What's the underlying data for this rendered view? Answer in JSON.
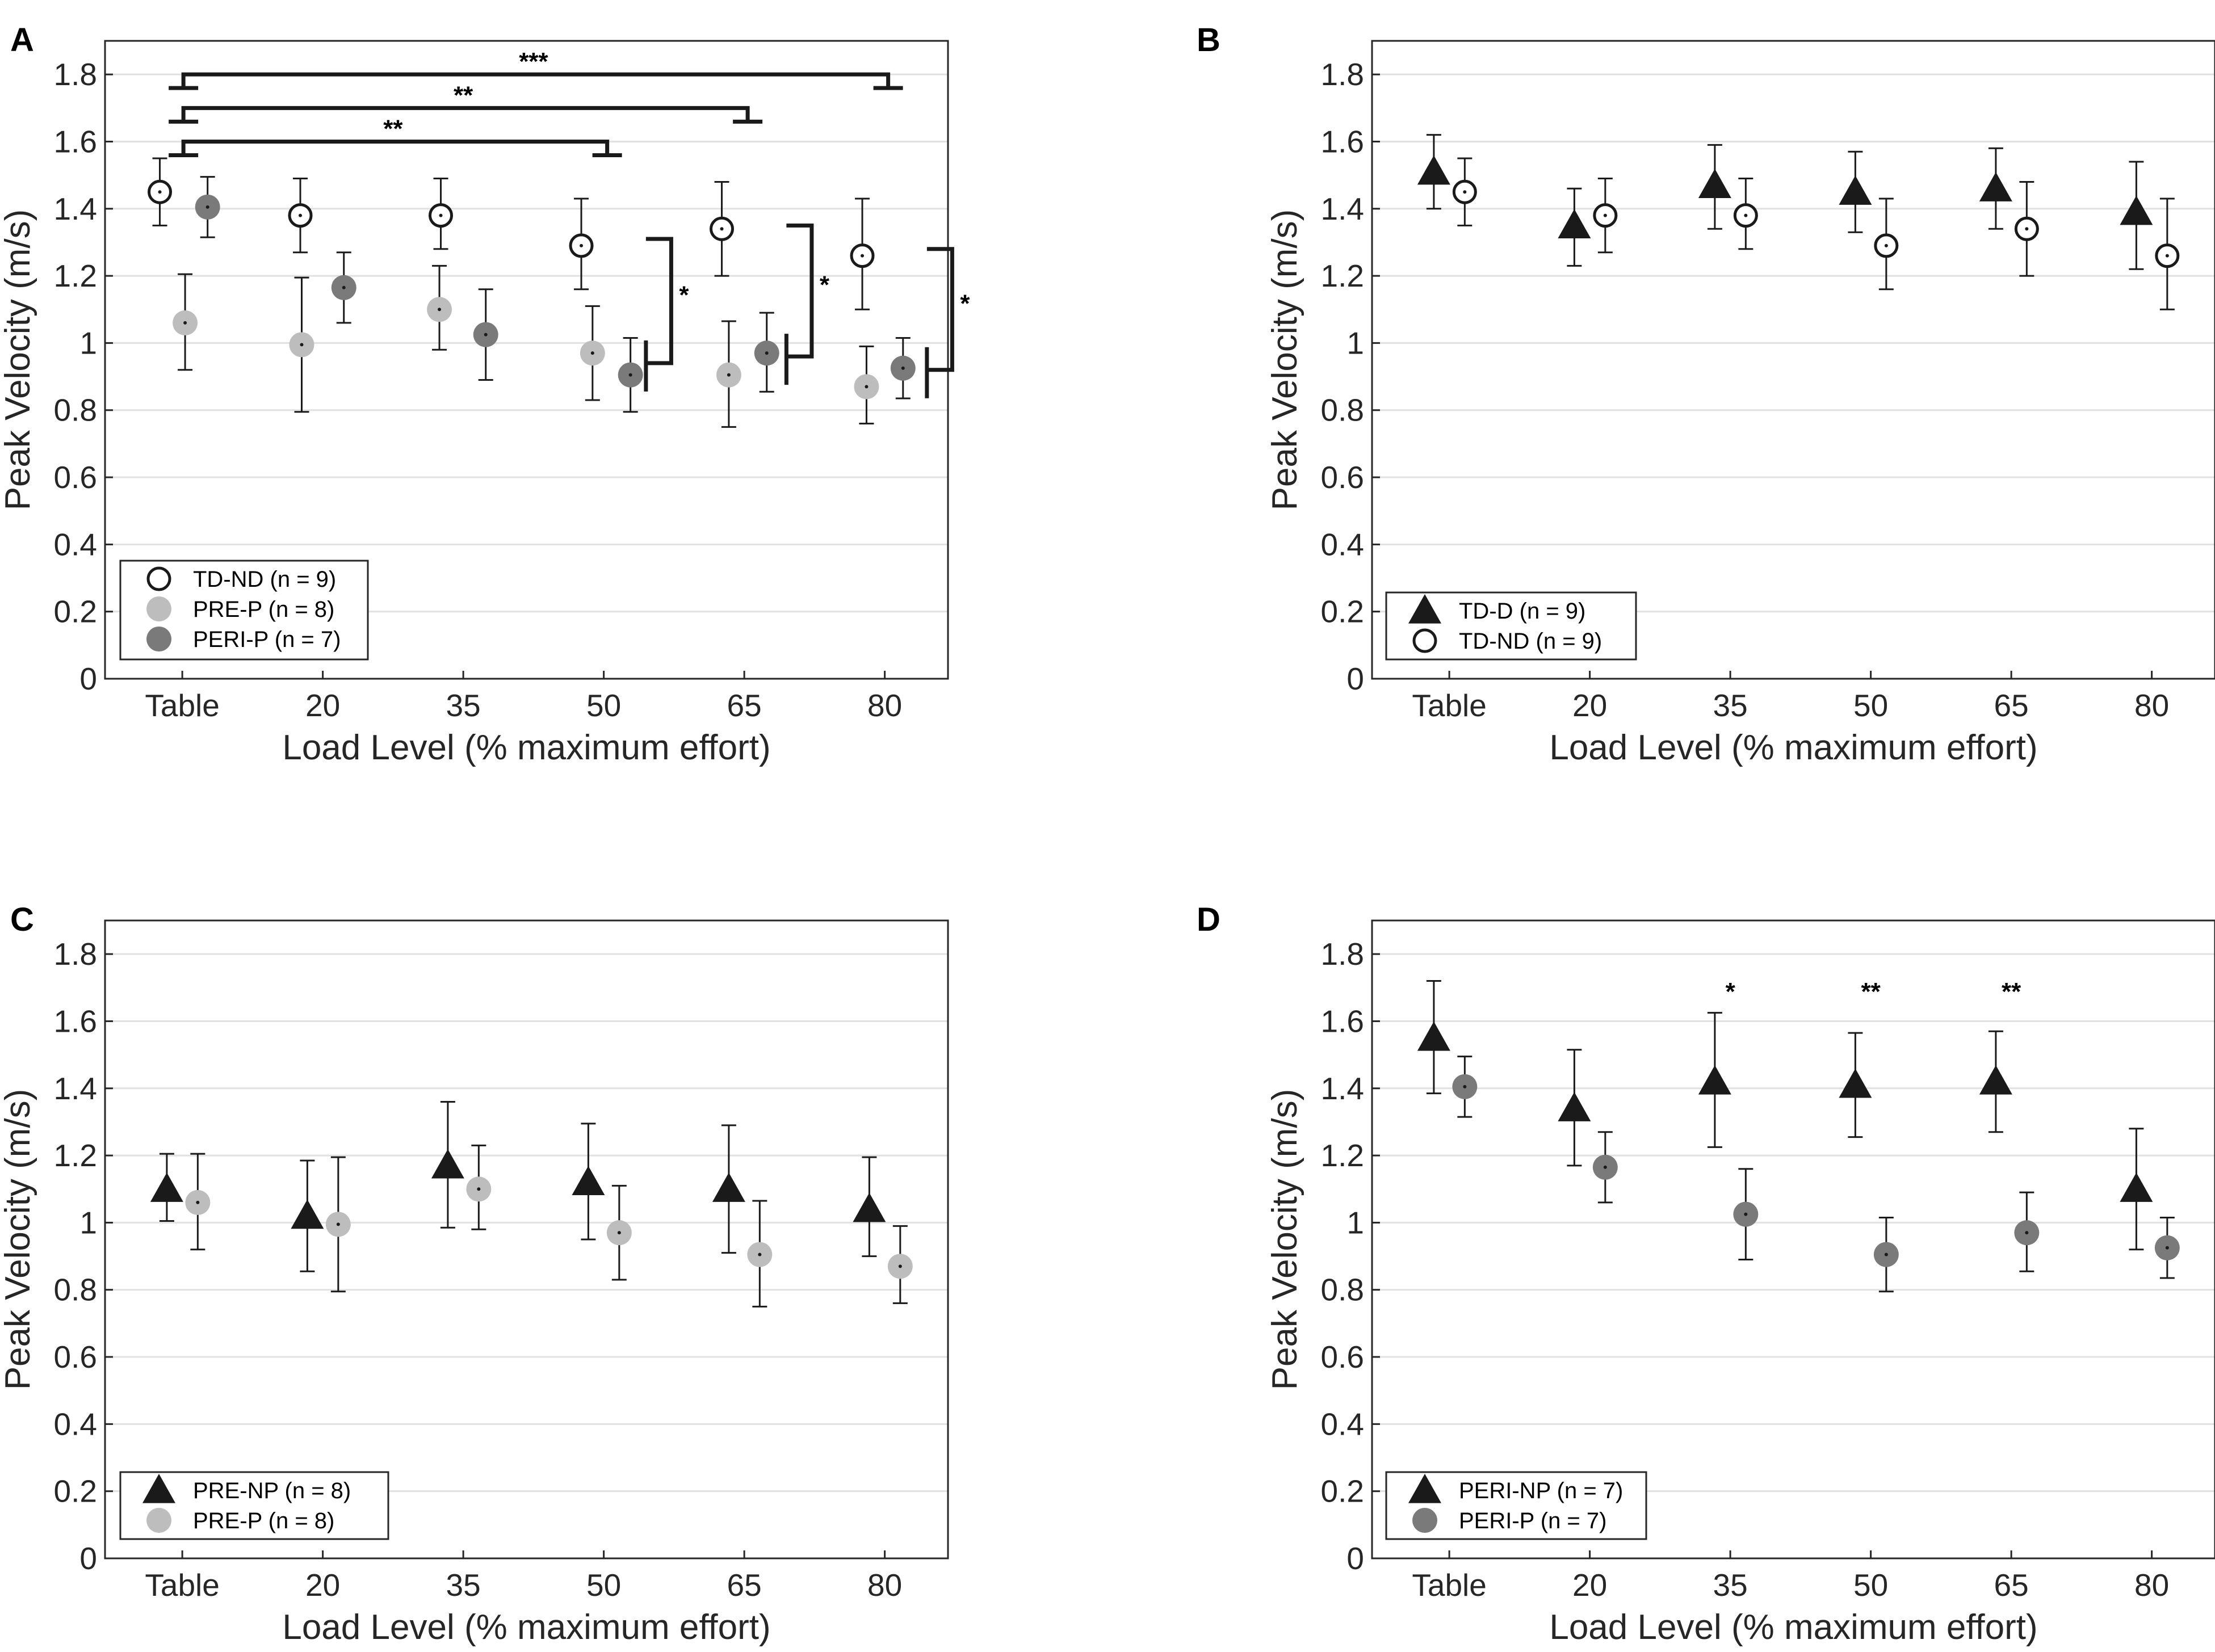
{
  "colors": {
    "black": "#1a1a1a",
    "open_marker_fill": "#ffffff",
    "light_gray": "#bdbdbd",
    "dark_gray": "#7a7a7a",
    "grid": "#e1e1e1",
    "axis": "#262626"
  },
  "chart_data": [
    {
      "panel": "A",
      "type": "scatter",
      "categories": [
        "Table",
        "20",
        "35",
        "50",
        "65",
        "80"
      ],
      "xlabel": "Load Level (% maximum effort)",
      "ylabel": "Peak Velocity (m/s)",
      "ylim": [
        0,
        1.9
      ],
      "yticks": [
        "0",
        "0.2",
        "0.4",
        "0.6",
        "0.8",
        "1",
        "1.2",
        "1.4",
        "1.6",
        "1.8"
      ],
      "grid": true,
      "legend_position": "bottom-left",
      "series": [
        {
          "name": "TD-ND (n = 9)",
          "marker": "open-circle",
          "offset": -0.16,
          "values": [
            1.45,
            1.38,
            1.38,
            1.29,
            1.34,
            1.26
          ],
          "lower": [
            1.35,
            1.27,
            1.28,
            1.16,
            1.2,
            1.1
          ],
          "upper": [
            1.55,
            1.49,
            1.49,
            1.43,
            1.48,
            1.43
          ]
        },
        {
          "name": "PRE-P (n = 8)",
          "marker": "light-circle",
          "offset": 0.0,
          "values": [
            1.06,
            0.995,
            1.1,
            0.97,
            0.905,
            0.87
          ],
          "lower": [
            0.92,
            0.795,
            0.98,
            0.83,
            0.75,
            0.76
          ],
          "upper": [
            1.205,
            1.195,
            1.23,
            1.11,
            1.065,
            0.99
          ]
        },
        {
          "name": "PERI-P (n = 7)",
          "marker": "dark-circle",
          "offset": 0.16,
          "values": [
            1.405,
            1.165,
            1.025,
            0.905,
            0.97,
            0.925
          ],
          "lower": [
            1.315,
            1.06,
            0.89,
            0.795,
            0.855,
            0.835
          ],
          "upper": [
            1.495,
            1.27,
            1.16,
            1.015,
            1.09,
            1.015
          ]
        }
      ],
      "custom_positions": {
        "PRE-P (n = 8)": [
          0.02,
          0.85,
          1.83,
          2.92,
          3.89,
          4.87
        ],
        "PERI-P (n = 7)": [
          0.18,
          1.15,
          2.16,
          3.19,
          4.16,
          5.13
        ]
      },
      "annotations": [
        {
          "type": "bracket-h",
          "from": 0,
          "to": 3,
          "y": 1.6,
          "label": "**"
        },
        {
          "type": "bracket-h",
          "from": 0,
          "to": 4,
          "y": 1.7,
          "label": "**"
        },
        {
          "type": "bracket-h",
          "from": 0,
          "to": 5,
          "y": 1.8,
          "label": "***"
        },
        {
          "type": "bracket-v",
          "x": 3,
          "y_low": 0.94,
          "y_high": 1.31,
          "label": "*"
        },
        {
          "type": "bracket-v",
          "x": 4,
          "y_low": 0.96,
          "y_high": 1.35,
          "label": "*"
        },
        {
          "type": "bracket-v",
          "x": 5,
          "y_low": 0.92,
          "y_high": 1.28,
          "label": "*"
        }
      ]
    },
    {
      "panel": "B",
      "type": "scatter",
      "categories": [
        "Table",
        "20",
        "35",
        "50",
        "65",
        "80"
      ],
      "xlabel": "Load Level (% maximum effort)",
      "ylabel": "Peak Velocity (m/s)",
      "ylim": [
        0,
        1.9
      ],
      "yticks": [
        "0",
        "0.2",
        "0.4",
        "0.6",
        "0.8",
        "1",
        "1.2",
        "1.4",
        "1.6",
        "1.8"
      ],
      "grid": true,
      "legend_position": "bottom-left",
      "series": [
        {
          "name": "TD-D (n = 9)",
          "marker": "triangle",
          "offset": -0.11,
          "values": [
            1.51,
            1.35,
            1.47,
            1.45,
            1.46,
            1.39
          ],
          "lower": [
            1.4,
            1.23,
            1.34,
            1.33,
            1.34,
            1.22
          ],
          "upper": [
            1.62,
            1.46,
            1.59,
            1.57,
            1.58,
            1.54
          ]
        },
        {
          "name": "TD-ND (n = 9)",
          "marker": "open-circle",
          "offset": 0.11,
          "values": [
            1.45,
            1.38,
            1.38,
            1.29,
            1.34,
            1.26
          ],
          "lower": [
            1.35,
            1.27,
            1.28,
            1.16,
            1.2,
            1.1
          ],
          "upper": [
            1.55,
            1.49,
            1.49,
            1.43,
            1.48,
            1.43
          ]
        }
      ],
      "annotations": []
    },
    {
      "panel": "C",
      "type": "scatter",
      "categories": [
        "Table",
        "20",
        "35",
        "50",
        "65",
        "80"
      ],
      "xlabel": "Load Level (% maximum effort)",
      "ylabel": "Peak Velocity (m/s)",
      "ylim": [
        0,
        1.9
      ],
      "yticks": [
        "0",
        "0.2",
        "0.4",
        "0.6",
        "0.8",
        "1",
        "1.2",
        "1.4",
        "1.6",
        "1.8"
      ],
      "grid": true,
      "legend_position": "bottom-left",
      "series": [
        {
          "name": "PRE-NP (n = 8)",
          "marker": "triangle",
          "offset": -0.11,
          "values": [
            1.1,
            1.02,
            1.17,
            1.12,
            1.1,
            1.04
          ],
          "lower": [
            1.005,
            0.855,
            0.985,
            0.95,
            0.91,
            0.9
          ],
          "upper": [
            1.205,
            1.185,
            1.36,
            1.295,
            1.29,
            1.195
          ]
        },
        {
          "name": "PRE-P (n = 8)",
          "marker": "light-circle",
          "offset": 0.11,
          "values": [
            1.06,
            0.995,
            1.1,
            0.97,
            0.905,
            0.87
          ],
          "lower": [
            0.92,
            0.795,
            0.98,
            0.83,
            0.75,
            0.76
          ],
          "upper": [
            1.205,
            1.195,
            1.23,
            1.11,
            1.065,
            0.99
          ]
        }
      ],
      "annotations": []
    },
    {
      "panel": "D",
      "type": "scatter",
      "categories": [
        "Table",
        "20",
        "35",
        "50",
        "65",
        "80"
      ],
      "xlabel": "Load Level (% maximum effort)",
      "ylabel": "Peak Velocity (m/s)",
      "ylim": [
        0,
        1.9
      ],
      "yticks": [
        "0",
        "0.2",
        "0.4",
        "0.6",
        "0.8",
        "1",
        "1.2",
        "1.4",
        "1.6",
        "1.8"
      ],
      "grid": true,
      "legend_position": "bottom-left",
      "series": [
        {
          "name": "PERI-NP (n = 7)",
          "marker": "triangle",
          "offset": -0.11,
          "values": [
            1.55,
            1.34,
            1.42,
            1.41,
            1.42,
            1.1
          ],
          "lower": [
            1.385,
            1.17,
            1.225,
            1.255,
            1.27,
            0.92
          ],
          "upper": [
            1.72,
            1.515,
            1.625,
            1.565,
            1.57,
            1.28
          ]
        },
        {
          "name": "PERI-P (n = 7)",
          "marker": "dark-circle",
          "offset": 0.11,
          "values": [
            1.405,
            1.165,
            1.025,
            0.905,
            0.97,
            0.925
          ],
          "lower": [
            1.315,
            1.06,
            0.89,
            0.795,
            0.855,
            0.835
          ],
          "upper": [
            1.495,
            1.27,
            1.16,
            1.015,
            1.09,
            1.015
          ]
        }
      ],
      "annotations": [
        {
          "type": "star",
          "x": 2,
          "y": 1.69,
          "label": "*"
        },
        {
          "type": "star",
          "x": 3,
          "y": 1.69,
          "label": "**"
        },
        {
          "type": "star",
          "x": 4,
          "y": 1.69,
          "label": "**"
        }
      ]
    }
  ]
}
